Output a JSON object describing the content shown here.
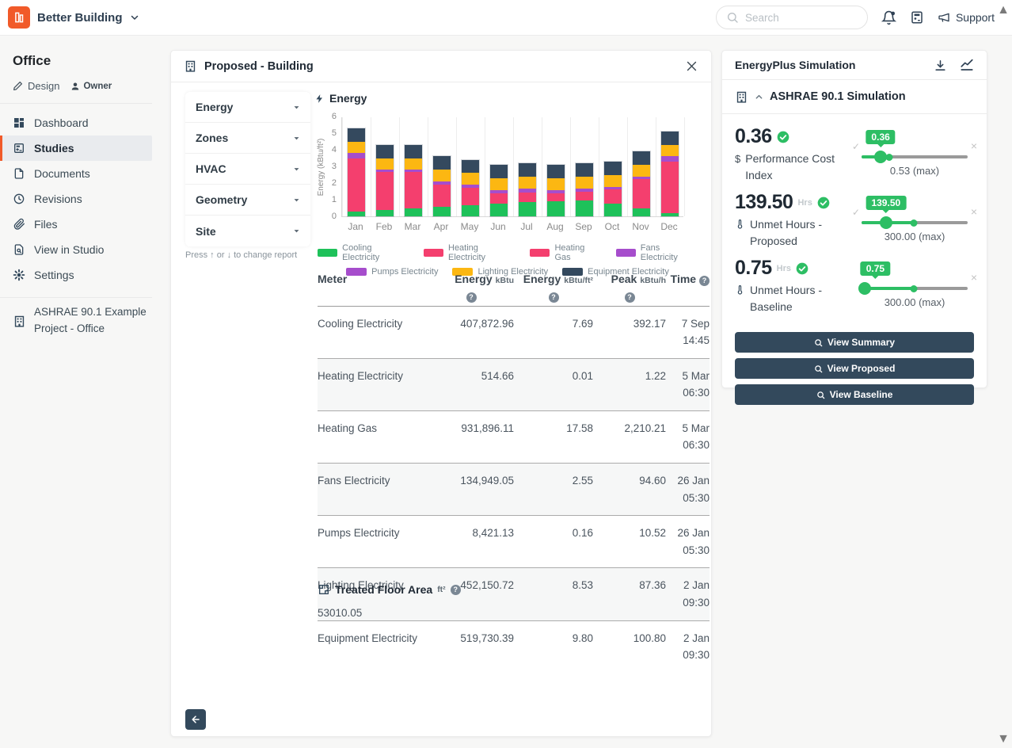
{
  "navbar": {
    "brand": "Better Building",
    "search_placeholder": "Search",
    "support_label": "Support"
  },
  "sidebar": {
    "title": "Office",
    "mode_label": "Design",
    "role_label": "Owner",
    "items": [
      {
        "label": "Dashboard",
        "icon": "grid",
        "selected": false
      },
      {
        "label": "Studies",
        "icon": "studies",
        "selected": true
      },
      {
        "label": "Documents",
        "icon": "file",
        "selected": false
      },
      {
        "label": "Revisions",
        "icon": "history",
        "selected": false
      },
      {
        "label": "Files",
        "icon": "paperclip",
        "selected": false
      },
      {
        "label": "View in Studio",
        "icon": "docsearch",
        "selected": false
      },
      {
        "label": "Settings",
        "icon": "gear",
        "selected": false
      }
    ],
    "project_link": "ASHRAE 90.1 Example Project - Office"
  },
  "panel": {
    "title": "Proposed - Building",
    "menu_items": [
      "Energy",
      "Zones",
      "HVAC",
      "Geometry",
      "Site"
    ],
    "hint": "Press ↑ or ↓ to change report",
    "section_title": "Energy"
  },
  "chart_data": {
    "type": "bar",
    "stacked": true,
    "title": "Energy",
    "ylabel": "Energy (kBtu/ft²)",
    "ylim": [
      0,
      6
    ],
    "yticks": [
      0,
      1,
      2,
      3,
      4,
      5,
      6
    ],
    "legend_position": "bottom",
    "grid": "vertical",
    "categories": [
      "Jan",
      "Feb",
      "Mar",
      "Apr",
      "May",
      "Jun",
      "Jul",
      "Aug",
      "Sep",
      "Oct",
      "Nov",
      "Dec"
    ],
    "series": [
      {
        "name": "Cooling Electricity",
        "color": "#1ec15a",
        "values": [
          0.27,
          0.38,
          0.47,
          0.57,
          0.68,
          0.78,
          0.88,
          0.9,
          0.97,
          0.78,
          0.47,
          0.17
        ]
      },
      {
        "name": "Heating Electricity",
        "color": "#f43f6e",
        "values": [
          0,
          0,
          0,
          0,
          0,
          0,
          0,
          0,
          0,
          0,
          0,
          0
        ]
      },
      {
        "name": "Heating Gas",
        "color": "#f43f6e",
        "values": [
          3.23,
          2.27,
          2.18,
          1.33,
          1.02,
          0.62,
          0.57,
          0.5,
          0.53,
          0.82,
          1.78,
          3.13
        ]
      },
      {
        "name": "Fans Electricity",
        "color": "#a64dcc",
        "values": [
          0.3,
          0.15,
          0.15,
          0.2,
          0.2,
          0.15,
          0.2,
          0.15,
          0.15,
          0.18,
          0.15,
          0.3
        ]
      },
      {
        "name": "Pumps Electricity",
        "color": "#a64dcc",
        "values": [
          0,
          0,
          0,
          0,
          0,
          0,
          0,
          0,
          0,
          0,
          0,
          0
        ]
      },
      {
        "name": "Lighting Electricity",
        "color": "#fcb712",
        "values": [
          0.7,
          0.7,
          0.7,
          0.7,
          0.7,
          0.75,
          0.75,
          0.75,
          0.75,
          0.72,
          0.7,
          0.7
        ]
      },
      {
        "name": "Equipment Electricity",
        "color": "#34495e",
        "values": [
          0.8,
          0.8,
          0.8,
          0.8,
          0.8,
          0.8,
          0.8,
          0.8,
          0.8,
          0.8,
          0.8,
          0.8
        ]
      }
    ],
    "legend_rows": [
      [
        0,
        1,
        2,
        3
      ],
      [
        4,
        5,
        6
      ]
    ]
  },
  "meter_table": {
    "columns": [
      {
        "label": "Meter",
        "unit": "",
        "help": false,
        "help_inline": false
      },
      {
        "label": "Energy",
        "unit": "kBtu",
        "help": true,
        "help_inline": false
      },
      {
        "label": "Energy",
        "unit": "kBtu/ft²",
        "help": true,
        "help_inline": false
      },
      {
        "label": "Peak",
        "unit": "kBtu/h",
        "help": true,
        "help_inline": false
      },
      {
        "label": "Time",
        "unit": "",
        "help": true,
        "help_inline": true
      }
    ],
    "rows": [
      {
        "meter": "Cooling Electricity",
        "energy": "407,872.96",
        "energy_ft2": "7.69",
        "peak": "392.17",
        "date": "7 Sep",
        "time": "14:45"
      },
      {
        "meter": "Heating Electricity",
        "energy": "514.66",
        "energy_ft2": "0.01",
        "peak": "1.22",
        "date": "5 Mar",
        "time": "06:30"
      },
      {
        "meter": "Heating Gas",
        "energy": "931,896.11",
        "energy_ft2": "17.58",
        "peak": "2,210.21",
        "date": "5 Mar",
        "time": "06:30"
      },
      {
        "meter": "Fans Electricity",
        "energy": "134,949.05",
        "energy_ft2": "2.55",
        "peak": "94.60",
        "date": "26 Jan",
        "time": "05:30"
      },
      {
        "meter": "Pumps Electricity",
        "energy": "8,421.13",
        "energy_ft2": "0.16",
        "peak": "10.52",
        "date": "26 Jan",
        "time": "05:30"
      },
      {
        "meter": "Lighting Electricity",
        "energy": "452,150.72",
        "energy_ft2": "8.53",
        "peak": "87.36",
        "date": "2 Jan",
        "time": "09:30"
      },
      {
        "meter": "Equipment Electricity",
        "energy": "519,730.39",
        "energy_ft2": "9.80",
        "peak": "100.80",
        "date": "2 Jan",
        "time": "09:30"
      }
    ]
  },
  "floor_area": {
    "label": "Treated Floor Area",
    "unit": "ft²",
    "value": "53010.05"
  },
  "simulation": {
    "title": "EnergyPlus Simulation",
    "subtitle": "ASHRAE 90.1 Simulation",
    "accent_color": "#2dbe64",
    "metrics": [
      {
        "value": "0.36",
        "unit": "",
        "label": "Performance Cost Index",
        "label_icon": "dollar",
        "passed": true,
        "show_check": true,
        "tooltip": "0.36",
        "max_label": "0.53 (max)",
        "value_pct": 18,
        "max_pct": 26
      },
      {
        "value": "139.50",
        "unit": "Hrs",
        "label": "Unmet Hours - Proposed",
        "label_icon": "thermometer",
        "passed": true,
        "show_check": true,
        "tooltip": "139.50",
        "max_label": "300.00 (max)",
        "value_pct": 23,
        "max_pct": 49
      },
      {
        "value": "0.75",
        "unit": "Hrs",
        "label": "Unmet Hours - Baseline",
        "label_icon": "thermometer",
        "passed": true,
        "show_check": false,
        "tooltip": "0.75",
        "max_label": "300.00 (max)",
        "value_pct": 1,
        "max_pct": 49
      }
    ],
    "buttons": [
      "View Summary",
      "View Proposed",
      "View Baseline"
    ]
  }
}
